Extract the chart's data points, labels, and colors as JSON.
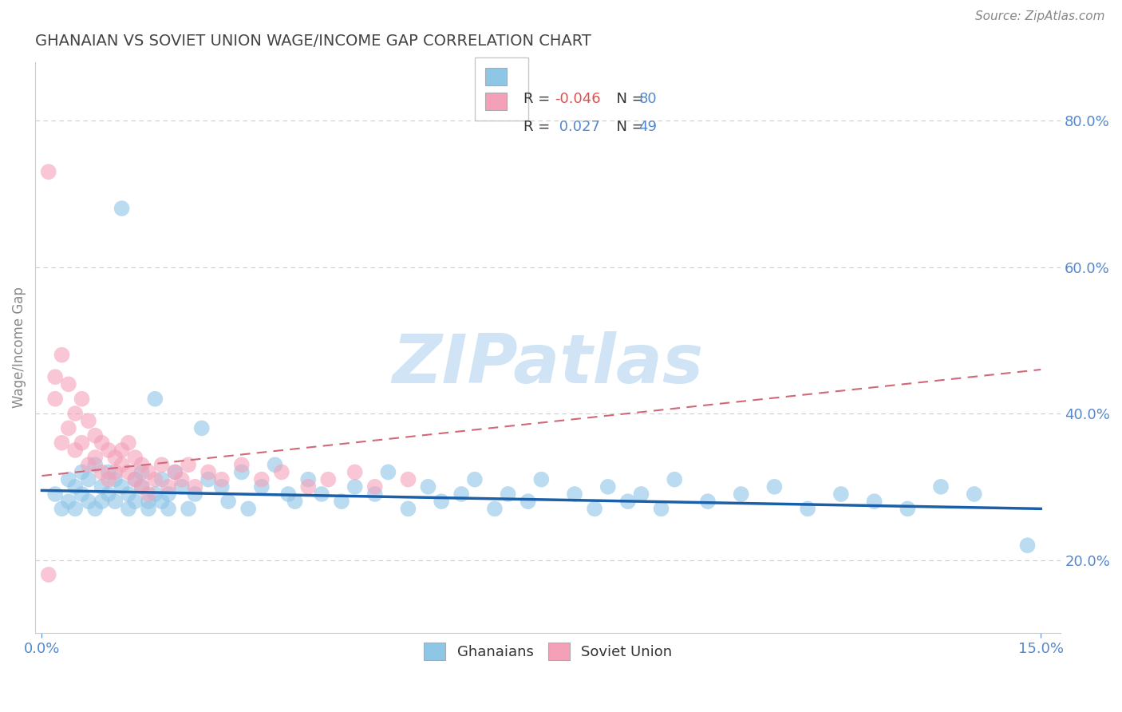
{
  "title": "GHANAIAN VS SOVIET UNION WAGE/INCOME GAP CORRELATION CHART",
  "source_text": "Source: ZipAtlas.com",
  "ylabel": "Wage/Income Gap",
  "xlim": [
    -0.001,
    0.153
  ],
  "ylim": [
    0.1,
    0.88
  ],
  "right_ytick_vals": [
    0.2,
    0.4,
    0.6,
    0.8
  ],
  "right_yticklabels": [
    "20.0%",
    "40.0%",
    "60.0%",
    "80.0%"
  ],
  "xtick_vals": [
    0.0,
    0.15
  ],
  "xticklabels": [
    "0.0%",
    "15.0%"
  ],
  "ghanaian_color": "#8ec6e6",
  "soviet_color": "#f4a0b8",
  "trend_blue_color": "#1a5fa8",
  "trend_pink_color": "#d06878",
  "watermark": "ZIPatlas",
  "watermark_color": "#d0e4f5",
  "title_color": "#444444",
  "axis_label_color": "#888888",
  "tick_color": "#5588cc",
  "grid_color": "#cccccc",
  "legend_r_blue_color": "#e05050",
  "legend_n_blue_color": "#5588cc",
  "legend_r_pink_color": "#5588cc",
  "legend_n_pink_color": "#5588cc",
  "blue_scatter_x": [
    0.002,
    0.003,
    0.004,
    0.004,
    0.005,
    0.005,
    0.006,
    0.006,
    0.007,
    0.007,
    0.008,
    0.008,
    0.009,
    0.009,
    0.01,
    0.01,
    0.011,
    0.011,
    0.012,
    0.012,
    0.013,
    0.013,
    0.014,
    0.014,
    0.015,
    0.015,
    0.016,
    0.016,
    0.017,
    0.017,
    0.018,
    0.018,
    0.019,
    0.019,
    0.02,
    0.021,
    0.022,
    0.023,
    0.024,
    0.025,
    0.027,
    0.028,
    0.03,
    0.031,
    0.033,
    0.035,
    0.037,
    0.038,
    0.04,
    0.042,
    0.045,
    0.047,
    0.05,
    0.052,
    0.055,
    0.058,
    0.06,
    0.063,
    0.065,
    0.068,
    0.07,
    0.073,
    0.075,
    0.08,
    0.083,
    0.085,
    0.088,
    0.09,
    0.093,
    0.095,
    0.1,
    0.105,
    0.11,
    0.115,
    0.12,
    0.125,
    0.13,
    0.135,
    0.14,
    0.148
  ],
  "blue_scatter_y": [
    0.29,
    0.27,
    0.31,
    0.28,
    0.3,
    0.27,
    0.32,
    0.29,
    0.31,
    0.28,
    0.33,
    0.27,
    0.3,
    0.28,
    0.32,
    0.29,
    0.31,
    0.28,
    0.68,
    0.3,
    0.29,
    0.27,
    0.31,
    0.28,
    0.3,
    0.32,
    0.28,
    0.27,
    0.42,
    0.29,
    0.28,
    0.31,
    0.29,
    0.27,
    0.32,
    0.3,
    0.27,
    0.29,
    0.38,
    0.31,
    0.3,
    0.28,
    0.32,
    0.27,
    0.3,
    0.33,
    0.29,
    0.28,
    0.31,
    0.29,
    0.28,
    0.3,
    0.29,
    0.32,
    0.27,
    0.3,
    0.28,
    0.29,
    0.31,
    0.27,
    0.29,
    0.28,
    0.31,
    0.29,
    0.27,
    0.3,
    0.28,
    0.29,
    0.27,
    0.31,
    0.28,
    0.29,
    0.3,
    0.27,
    0.29,
    0.28,
    0.27,
    0.3,
    0.29,
    0.22
  ],
  "pink_scatter_x": [
    0.001,
    0.002,
    0.002,
    0.003,
    0.003,
    0.004,
    0.004,
    0.005,
    0.005,
    0.006,
    0.006,
    0.007,
    0.007,
    0.008,
    0.008,
    0.009,
    0.009,
    0.01,
    0.01,
    0.011,
    0.011,
    0.012,
    0.012,
    0.013,
    0.013,
    0.014,
    0.014,
    0.015,
    0.015,
    0.016,
    0.016,
    0.017,
    0.018,
    0.019,
    0.02,
    0.021,
    0.022,
    0.023,
    0.025,
    0.027,
    0.03,
    0.033,
    0.036,
    0.04,
    0.043,
    0.047,
    0.05,
    0.055,
    0.001
  ],
  "pink_scatter_y": [
    0.73,
    0.45,
    0.42,
    0.48,
    0.36,
    0.44,
    0.38,
    0.4,
    0.35,
    0.42,
    0.36,
    0.39,
    0.33,
    0.37,
    0.34,
    0.36,
    0.32,
    0.35,
    0.31,
    0.34,
    0.32,
    0.35,
    0.33,
    0.36,
    0.32,
    0.34,
    0.31,
    0.33,
    0.3,
    0.32,
    0.29,
    0.31,
    0.33,
    0.3,
    0.32,
    0.31,
    0.33,
    0.3,
    0.32,
    0.31,
    0.33,
    0.31,
    0.32,
    0.3,
    0.31,
    0.32,
    0.3,
    0.31,
    0.18
  ]
}
